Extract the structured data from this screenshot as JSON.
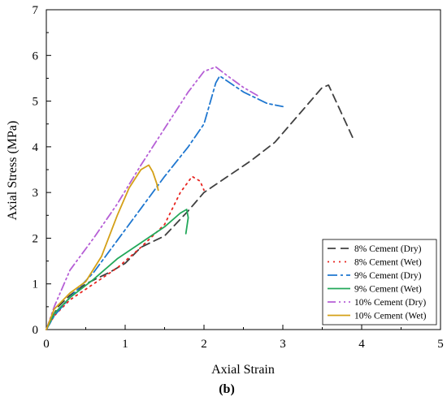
{
  "chart_data": {
    "type": "line",
    "xlabel": "Axial Strain",
    "ylabel": "Axial Stress (MPa)",
    "panel_label": "(b)",
    "xlim": [
      0,
      5
    ],
    "ylim": [
      0,
      7
    ],
    "x_ticks": [
      0,
      1,
      2,
      3,
      4,
      5
    ],
    "y_ticks": [
      0,
      1,
      2,
      3,
      4,
      5,
      6,
      7
    ],
    "legend_position": "bottom-right",
    "series": [
      {
        "name": "8% Cement (Dry)",
        "color": "#404040",
        "dash": "10,6",
        "x": [
          0.0,
          0.05,
          0.15,
          0.3,
          0.5,
          0.8,
          1.0,
          1.2,
          1.5,
          1.8,
          2.0,
          2.3,
          2.6,
          2.9,
          3.2,
          3.5,
          3.58,
          3.7,
          3.9
        ],
        "y": [
          0.0,
          0.2,
          0.5,
          0.75,
          1.0,
          1.25,
          1.45,
          1.8,
          2.05,
          2.6,
          3.0,
          3.35,
          3.7,
          4.1,
          4.7,
          5.3,
          5.35,
          4.9,
          4.15
        ]
      },
      {
        "name": "8% Cement (Wet)",
        "color": "#e8241f",
        "dash": "2,5",
        "x": [
          0.0,
          0.1,
          0.3,
          0.6,
          0.9,
          1.2,
          1.5,
          1.7,
          1.85,
          1.95,
          2.0
        ],
        "y": [
          0.0,
          0.3,
          0.65,
          1.0,
          1.35,
          1.8,
          2.3,
          3.0,
          3.35,
          3.25,
          3.05
        ]
      },
      {
        "name": "9% Cement (Dry)",
        "color": "#1f77d0",
        "dash": "12,4,3,4",
        "x": [
          0.0,
          0.1,
          0.3,
          0.6,
          0.9,
          1.2,
          1.5,
          1.8,
          2.0,
          2.15,
          2.2,
          2.5,
          2.8,
          3.0
        ],
        "y": [
          0.0,
          0.3,
          0.7,
          1.25,
          1.95,
          2.65,
          3.35,
          4.0,
          4.5,
          5.4,
          5.55,
          5.2,
          4.95,
          4.88
        ]
      },
      {
        "name": "9% Cement (Wet)",
        "color": "#22a85a",
        "dash": "",
        "x": [
          0.0,
          0.1,
          0.3,
          0.6,
          0.9,
          1.2,
          1.5,
          1.7,
          1.78,
          1.8,
          1.77
        ],
        "y": [
          0.0,
          0.35,
          0.7,
          1.1,
          1.55,
          1.9,
          2.25,
          2.55,
          2.63,
          2.45,
          2.1
        ]
      },
      {
        "name": "10% Cement (Dry)",
        "color": "#b65fd6",
        "dash": "10,4,2,4,2,4",
        "x": [
          0.0,
          0.1,
          0.3,
          0.6,
          0.9,
          1.2,
          1.5,
          1.8,
          2.0,
          2.15,
          2.3,
          2.5,
          2.7
        ],
        "y": [
          0.0,
          0.5,
          1.3,
          2.0,
          2.75,
          3.6,
          4.4,
          5.2,
          5.65,
          5.75,
          5.55,
          5.3,
          5.1
        ]
      },
      {
        "name": "10% Cement (Wet)",
        "color": "#d4a017",
        "dash": "",
        "x": [
          0.0,
          0.1,
          0.3,
          0.5,
          0.7,
          0.9,
          1.05,
          1.2,
          1.3,
          1.35,
          1.4,
          1.42
        ],
        "y": [
          0.0,
          0.45,
          0.8,
          1.05,
          1.6,
          2.5,
          3.1,
          3.5,
          3.6,
          3.45,
          3.2,
          3.05
        ]
      }
    ]
  }
}
